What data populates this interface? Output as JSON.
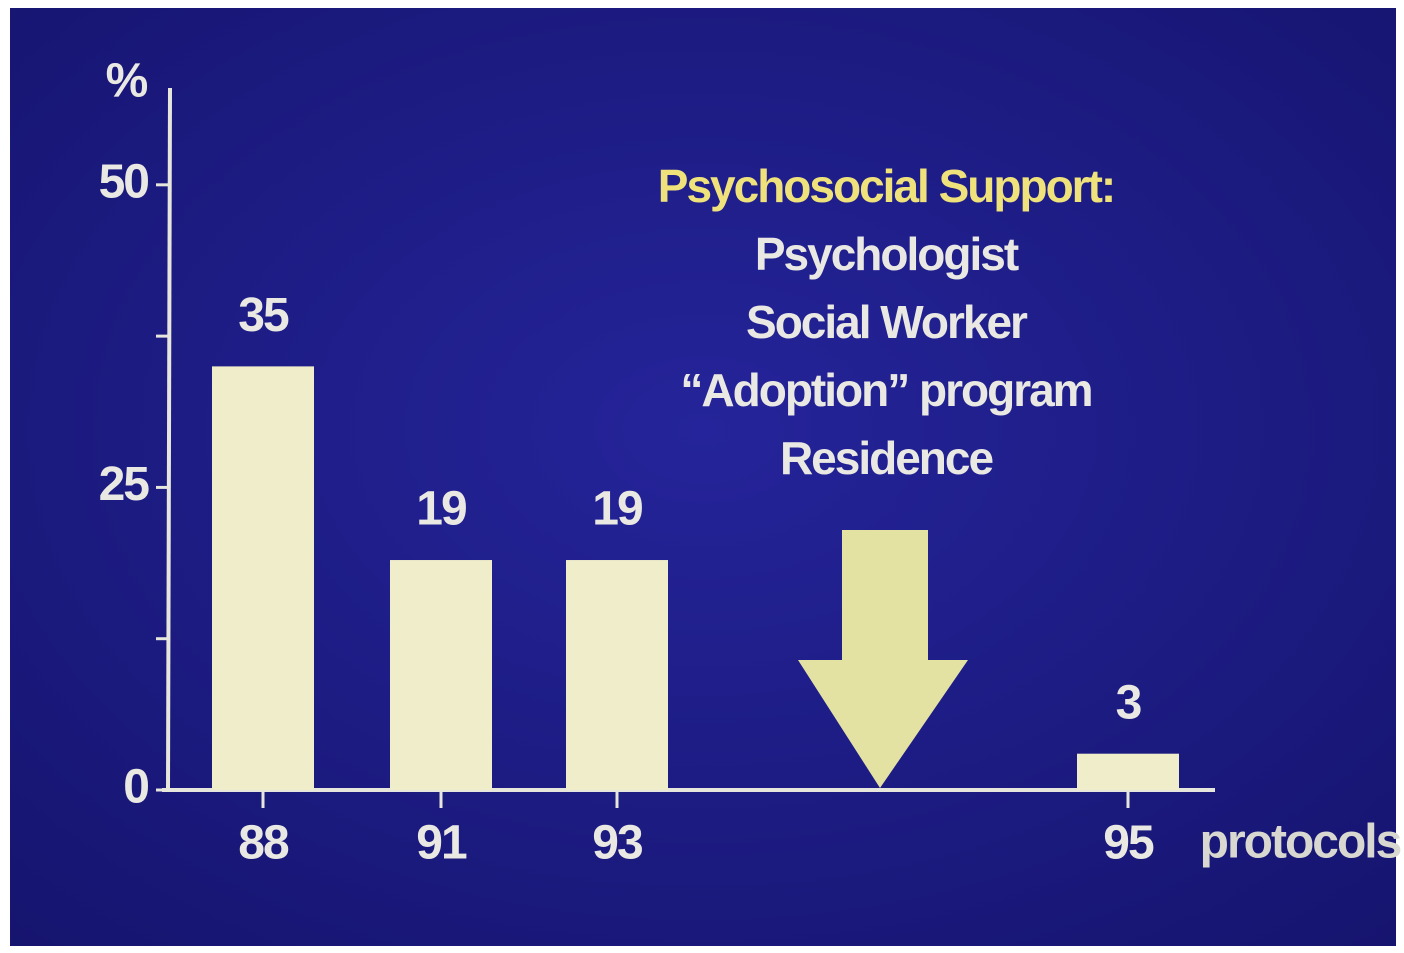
{
  "chart_data": {
    "type": "bar",
    "y_label": "%",
    "x_label": "protocols",
    "categories": [
      "88",
      "91",
      "93",
      null,
      null,
      "95"
    ],
    "values": [
      35,
      19,
      19,
      null,
      null,
      3
    ],
    "color": "#efedca",
    "ylim": [
      0,
      58
    ],
    "yticks": [
      0,
      25,
      50
    ],
    "minor_yticks": [
      12.5,
      37.5
    ],
    "annotation": {
      "title": "Psychosocial Support:",
      "title_color": "#f0e27a",
      "lines": [
        "Psychologist",
        "Social Worker",
        "“Adoption” program",
        "Residence"
      ]
    }
  }
}
